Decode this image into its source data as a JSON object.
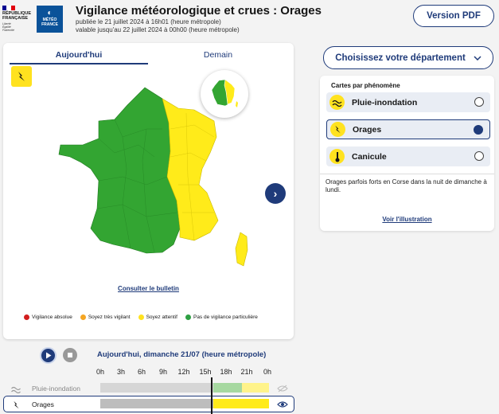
{
  "header": {
    "republic_lines": [
      "RÉPUBLIQUE",
      "FRANÇAISE"
    ],
    "republic_motto": [
      "Liberté",
      "Égalité",
      "Fraternité"
    ],
    "meteo_logo_lines": [
      "MÉTÉO",
      "FRANCE"
    ],
    "title": "Vigilance météorologique et crues : Orages",
    "published": "publiée le 21 juillet 2024 à 16h01 (heure métropole)",
    "valid_until": "valable jusqu'au 22 juillet 2024 à 00h00 (heure métropole)",
    "pdf_button": "Version PDF"
  },
  "tabs": {
    "today": "Aujourd'hui",
    "tomorrow": "Demain"
  },
  "map": {
    "bulletin_link": "Consulter le bulletin",
    "legend": [
      {
        "label": "Vigilance absolue",
        "color": "#d21e1e"
      },
      {
        "label": "Soyez très vigilant",
        "color": "#f5a623"
      },
      {
        "label": "Soyez attentif",
        "color": "#ffe21f"
      },
      {
        "label": "Pas de vigilance particulière",
        "color": "#2ea043"
      }
    ],
    "colors": {
      "green": "#33a532",
      "yellow": "#ffeb1a"
    }
  },
  "department_select": "Choisissez votre département",
  "phenomena": {
    "heading": "Cartes par phénomène",
    "items": [
      {
        "label": "Pluie-inondation",
        "icon": "rain-flood-icon",
        "selected": false
      },
      {
        "label": "Orages",
        "icon": "lightning-icon",
        "selected": true
      },
      {
        "label": "Canicule",
        "icon": "thermometer-icon",
        "selected": false
      }
    ],
    "description": "Orages parfois forts en Corse dans la nuit de dimanche à lundi.",
    "illustration_link": "Voir l'illustration"
  },
  "timeline": {
    "title": "Aujourd'hui, dimanche 21/07 (heure métropole)",
    "hours": [
      "0h",
      "3h",
      "6h",
      "9h",
      "12h",
      "15h",
      "18h",
      "21h",
      "0h"
    ],
    "rows": [
      {
        "label": "Pluie-inondation",
        "icon": "rain-flood-icon"
      },
      {
        "label": "Orages",
        "icon": "lightning-icon"
      }
    ]
  }
}
